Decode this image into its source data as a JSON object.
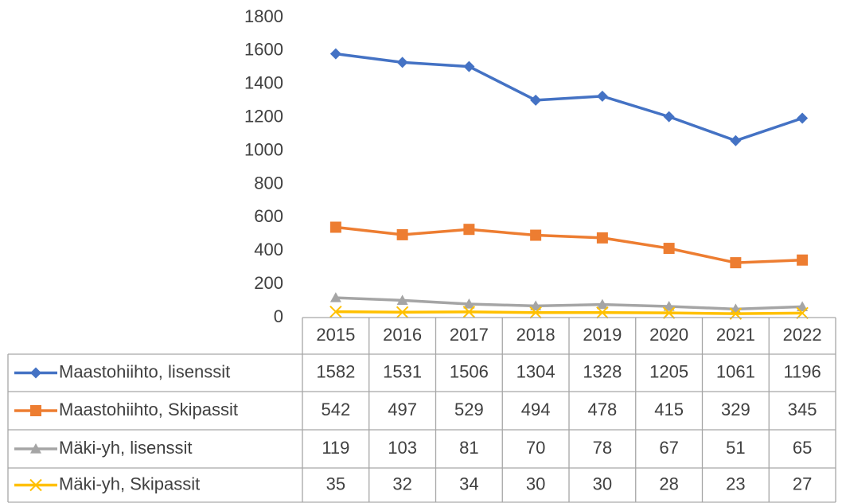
{
  "chart_data": {
    "type": "line",
    "categories": [
      "2015",
      "2016",
      "2017",
      "2018",
      "2019",
      "2020",
      "2021",
      "2022"
    ],
    "series": [
      {
        "name": "Maastohiihto, lisenssit",
        "color": "#4472c4",
        "marker": "diamond",
        "values": [
          1582,
          1531,
          1506,
          1304,
          1328,
          1205,
          1061,
          1196
        ]
      },
      {
        "name": "Maastohiihto, Skipassit",
        "color": "#ed7d31",
        "marker": "square",
        "values": [
          542,
          497,
          529,
          494,
          478,
          415,
          329,
          345
        ]
      },
      {
        "name": "Mäki-yh, lisenssit",
        "color": "#a5a5a5",
        "marker": "triangle",
        "values": [
          119,
          103,
          81,
          70,
          78,
          67,
          51,
          65
        ]
      },
      {
        "name": "Mäki-yh, Skipassit",
        "color": "#ffc000",
        "marker": "x",
        "values": [
          35,
          32,
          34,
          30,
          30,
          28,
          23,
          27
        ]
      }
    ],
    "ylim": [
      0,
      1800
    ],
    "yticks": [
      0,
      200,
      400,
      600,
      800,
      1000,
      1200,
      1400,
      1600,
      1800
    ],
    "grid": false,
    "data_table": true
  }
}
